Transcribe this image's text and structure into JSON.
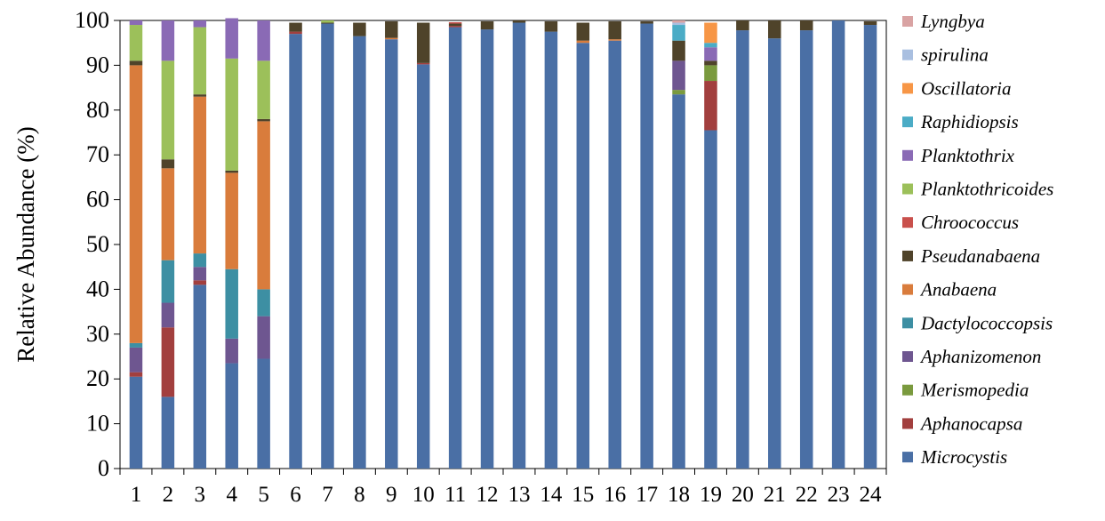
{
  "chart_data": {
    "type": "bar",
    "stacked": true,
    "title": "",
    "xlabel": "",
    "ylabel": "Relative Abundance (%)",
    "ylim": [
      0,
      100
    ],
    "yticks": [
      0,
      10,
      20,
      30,
      40,
      50,
      60,
      70,
      80,
      90,
      100
    ],
    "grid": false,
    "legend_position": "right",
    "categories": [
      "1",
      "2",
      "3",
      "4",
      "5",
      "6",
      "7",
      "8",
      "9",
      "10",
      "11",
      "12",
      "13",
      "14",
      "15",
      "16",
      "17",
      "18",
      "19",
      "20",
      "21",
      "22",
      "23",
      "24"
    ],
    "series": [
      {
        "name": "Microcystis",
        "color": "#4a6fa5",
        "values": [
          20.5,
          16,
          41,
          23.5,
          24.5,
          97,
          99.3,
          96.5,
          95.8,
          90.2,
          98.5,
          98,
          99.5,
          97.5,
          95,
          95.5,
          99.3,
          83.5,
          75.5,
          97.8,
          96,
          97.8,
          100,
          99
        ]
      },
      {
        "name": "Aphanocapsa",
        "color": "#a23f3e",
        "values": [
          1,
          15.5,
          1,
          0,
          0,
          0.5,
          0,
          0,
          0,
          0.3,
          0.3,
          0,
          0,
          0,
          0,
          0,
          0,
          0,
          11,
          0,
          0,
          0,
          0,
          0
        ]
      },
      {
        "name": "Merismopedia",
        "color": "#7a9a3e",
        "values": [
          0,
          0,
          0,
          0,
          0,
          0,
          0,
          0,
          0,
          0,
          0,
          0,
          0,
          0,
          0,
          0,
          0,
          1,
          3.5,
          0,
          0,
          0,
          0,
          0
        ]
      },
      {
        "name": "Aphanizomenon",
        "color": "#6e5690",
        "values": [
          5.5,
          5.5,
          3,
          5.5,
          9.5,
          0,
          0,
          0,
          0,
          0,
          0,
          0,
          0,
          0,
          0,
          0,
          0,
          6.5,
          0,
          0,
          0,
          0,
          0,
          0
        ]
      },
      {
        "name": "Dactylococcopsis",
        "color": "#3d8fa3",
        "values": [
          1,
          9.5,
          3,
          15.5,
          6,
          0,
          0,
          0,
          0,
          0,
          0,
          0,
          0,
          0,
          0,
          0,
          0,
          0,
          0,
          0,
          0,
          0,
          0,
          0
        ]
      },
      {
        "name": "Anabaena",
        "color": "#d97c3c",
        "values": [
          62,
          20.5,
          35,
          21.5,
          37.5,
          0,
          0,
          0,
          0.3,
          0,
          0,
          0,
          0,
          0,
          0.5,
          0.3,
          0,
          0,
          0,
          0,
          0,
          0,
          0,
          0
        ]
      },
      {
        "name": "Pseudanabaena",
        "color": "#4f432a",
        "values": [
          1,
          2,
          0.5,
          0.5,
          0.5,
          2,
          0.2,
          3,
          3.7,
          9,
          0.5,
          1.8,
          0.5,
          2.3,
          4,
          4,
          0.5,
          4.5,
          1,
          2.2,
          4,
          2.2,
          0,
          0.8
        ]
      },
      {
        "name": "Chroococcus",
        "color": "#c9504c",
        "values": [
          0,
          0,
          0,
          0,
          0,
          0,
          0,
          0,
          0,
          0,
          0.3,
          0,
          0,
          0,
          0,
          0,
          0,
          0,
          0,
          0,
          0,
          0,
          0,
          0
        ]
      },
      {
        "name": "Planktothricoides",
        "color": "#9cc05a",
        "values": [
          8,
          22,
          15,
          25,
          13,
          0,
          0.5,
          0,
          0,
          0,
          0,
          0,
          0,
          0,
          0,
          0,
          0,
          0,
          0,
          0,
          0,
          0,
          0,
          0
        ]
      },
      {
        "name": "Planktothrix",
        "color": "#8a6ab5",
        "values": [
          1,
          9,
          1.5,
          9,
          9,
          0,
          0,
          0,
          0,
          0,
          0,
          0,
          0,
          0,
          0,
          0,
          0,
          0,
          3,
          0,
          0,
          0,
          0,
          0
        ]
      },
      {
        "name": "Raphidiopsis",
        "color": "#4bacc6",
        "values": [
          0,
          0,
          0,
          0,
          0,
          0,
          0,
          0,
          0,
          0,
          0,
          0,
          0,
          0,
          0,
          0,
          0,
          3.5,
          1,
          0,
          0,
          0,
          0,
          0
        ]
      },
      {
        "name": "Oscillatoria",
        "color": "#f79646",
        "values": [
          0,
          0,
          0,
          0,
          0,
          0,
          0,
          0,
          0,
          0,
          0,
          0,
          0,
          0,
          0,
          0,
          0,
          0,
          4.5,
          0,
          0,
          0,
          0,
          0
        ]
      },
      {
        "name": "spirulina",
        "color": "#a9bfe0",
        "values": [
          0,
          0,
          0,
          0,
          0,
          0,
          0,
          0,
          0,
          0,
          0,
          0,
          0,
          0,
          0,
          0,
          0,
          0.5,
          0,
          0,
          0,
          0,
          0,
          0
        ]
      },
      {
        "name": "Lyngbya",
        "color": "#d9a3a3",
        "values": [
          0,
          0,
          0,
          0,
          0,
          0,
          0,
          0,
          0,
          0,
          0,
          0,
          0,
          0,
          0,
          0,
          0,
          0.5,
          0,
          0,
          0,
          0,
          0,
          0
        ]
      }
    ],
    "legend_order": [
      "Lyngbya",
      "spirulina",
      "Oscillatoria",
      "Raphidiopsis",
      "Planktothrix",
      "Planktothricoides",
      "Chroococcus",
      "Pseudanabaena",
      "Anabaena",
      "Dactylococcopsis",
      "Aphanizomenon",
      "Merismopedia",
      "Aphanocapsa",
      "Microcystis"
    ]
  }
}
